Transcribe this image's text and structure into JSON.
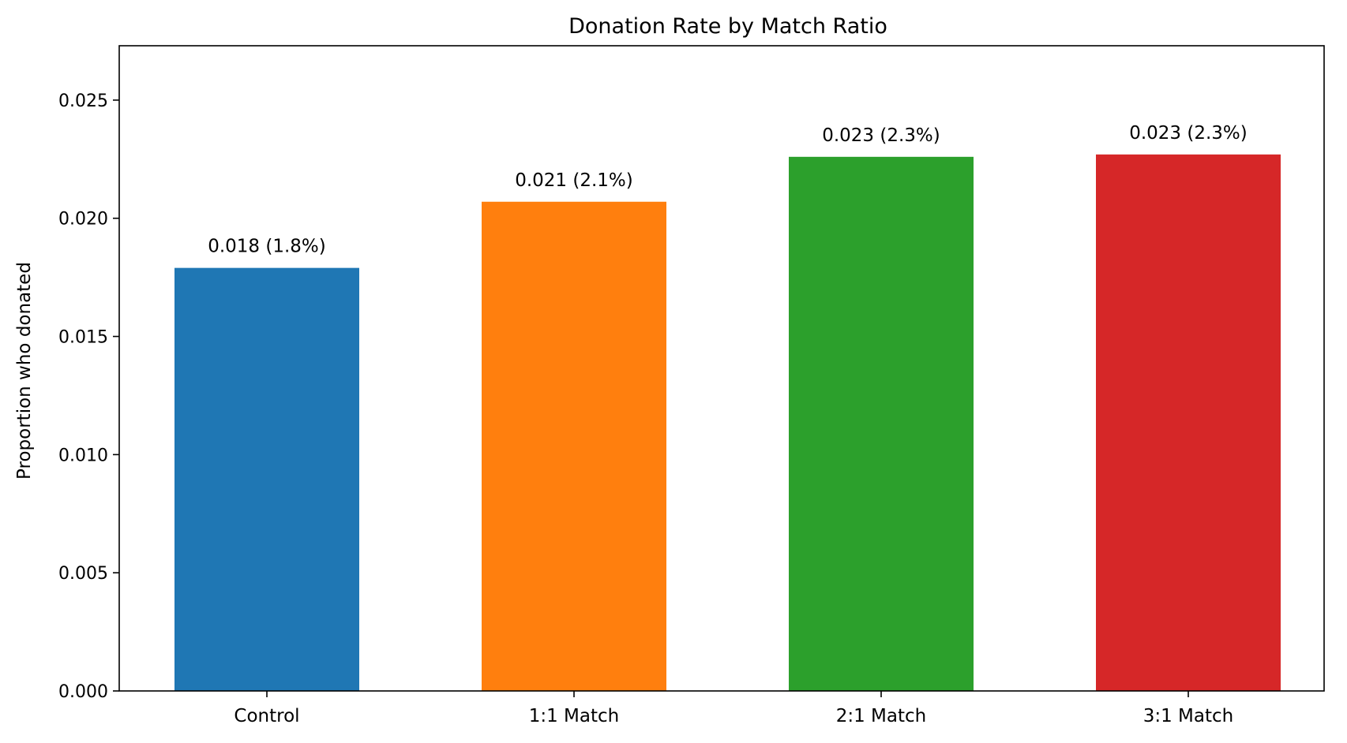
{
  "chart_data": {
    "type": "bar",
    "title": "Donation Rate by Match Ratio",
    "xlabel": "",
    "ylabel": "Proportion who donated",
    "categories": [
      "Control",
      "1:1 Match",
      "2:1 Match",
      "3:1 Match"
    ],
    "values": [
      0.0179,
      0.0207,
      0.0226,
      0.0227
    ],
    "bar_labels": [
      "0.018 (1.8%)",
      "0.021 (2.1%)",
      "0.023 (2.3%)",
      "0.023 (2.3%)"
    ],
    "colors": [
      "#1f77b4",
      "#ff7f0e",
      "#2ca02c",
      "#d62728"
    ],
    "ylim": [
      0,
      0.0273
    ],
    "yticks": [
      0.0,
      0.005,
      0.01,
      0.015,
      0.02,
      0.025
    ],
    "ytick_labels": [
      "0.000",
      "0.005",
      "0.010",
      "0.015",
      "0.020",
      "0.025"
    ],
    "grid": false,
    "legend": "none"
  }
}
